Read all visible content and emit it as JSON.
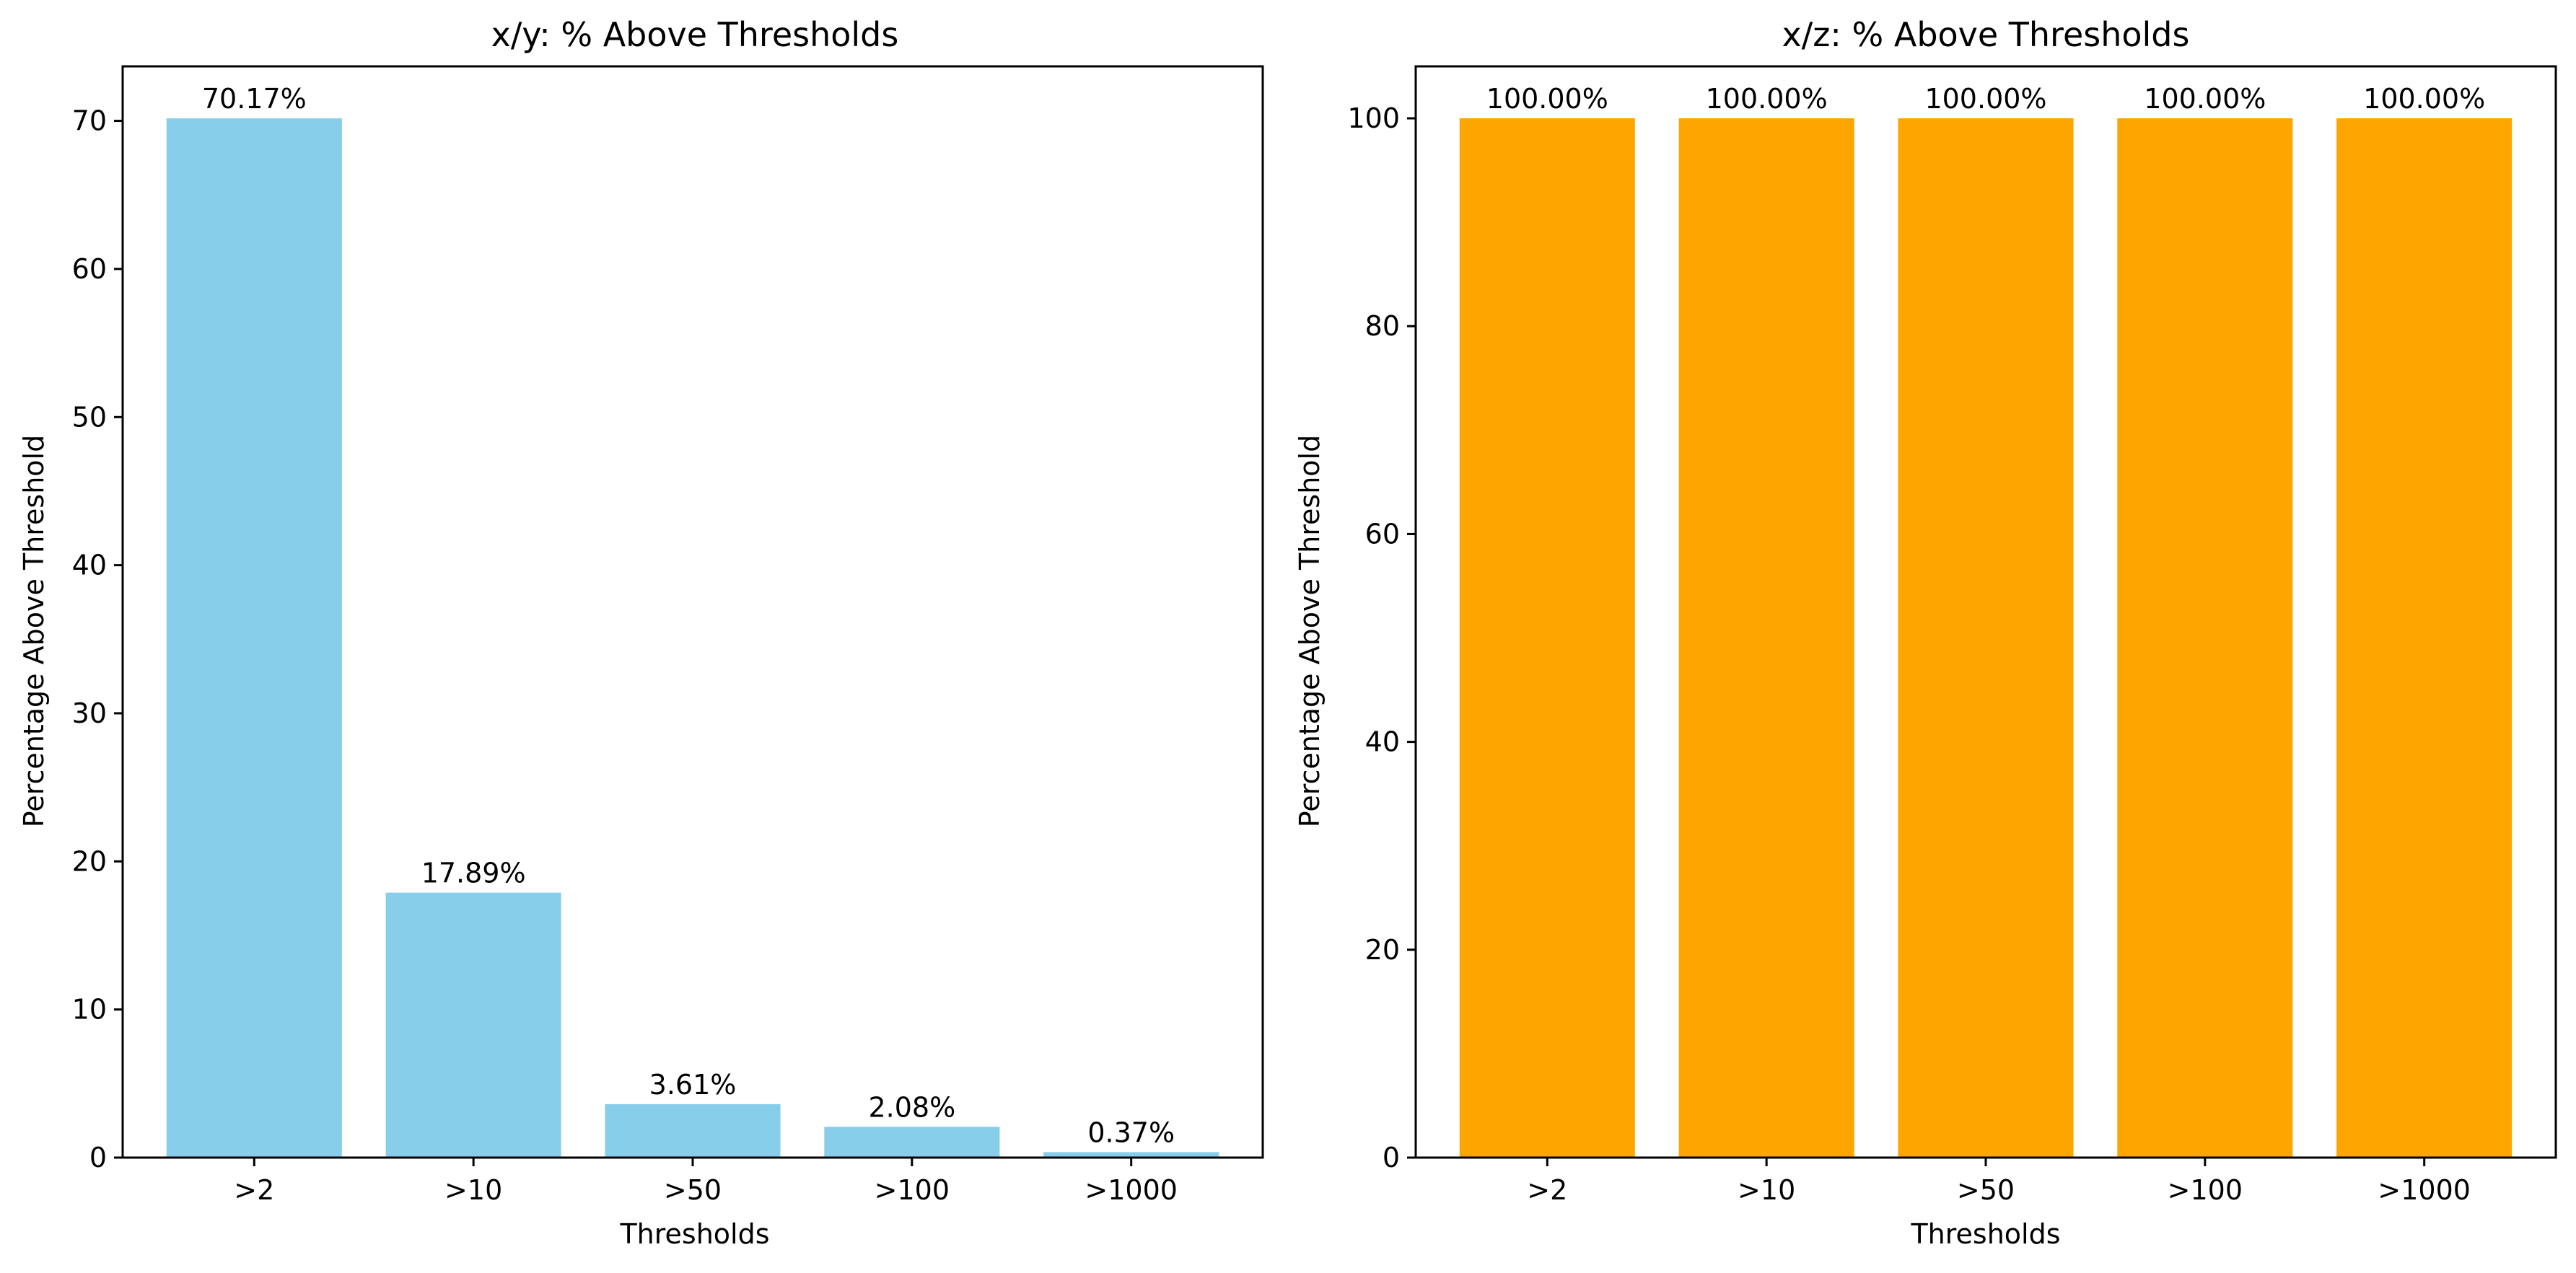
{
  "chart_data": [
    {
      "type": "bar",
      "title": "x/y: % Above Thresholds",
      "xlabel": "Thresholds",
      "ylabel": "Percentage Above Threshold",
      "categories": [
        ">2",
        ">10",
        ">50",
        ">100",
        ">1000"
      ],
      "values": [
        70.17,
        17.89,
        3.61,
        2.08,
        0.37
      ],
      "value_labels": [
        "70.17%",
        "17.89%",
        "3.61%",
        "2.08%",
        "0.37%"
      ],
      "ylim": [
        0,
        73.68
      ],
      "yticks": [
        0,
        10,
        20,
        30,
        40,
        50,
        60,
        70
      ],
      "color": "#87CEEB",
      "grid": false,
      "legend": "none"
    },
    {
      "type": "bar",
      "title": "x/z: % Above Thresholds",
      "xlabel": "Thresholds",
      "ylabel": "Percentage Above Threshold",
      "categories": [
        ">2",
        ">10",
        ">50",
        ">100",
        ">1000"
      ],
      "values": [
        100.0,
        100.0,
        100.0,
        100.0,
        100.0
      ],
      "value_labels": [
        "100.00%",
        "100.00%",
        "100.00%",
        "100.00%",
        "100.00%"
      ],
      "ylim": [
        0,
        105
      ],
      "yticks": [
        0,
        20,
        40,
        60,
        80,
        100
      ],
      "color": "#FFA500",
      "grid": false,
      "legend": "none"
    }
  ]
}
